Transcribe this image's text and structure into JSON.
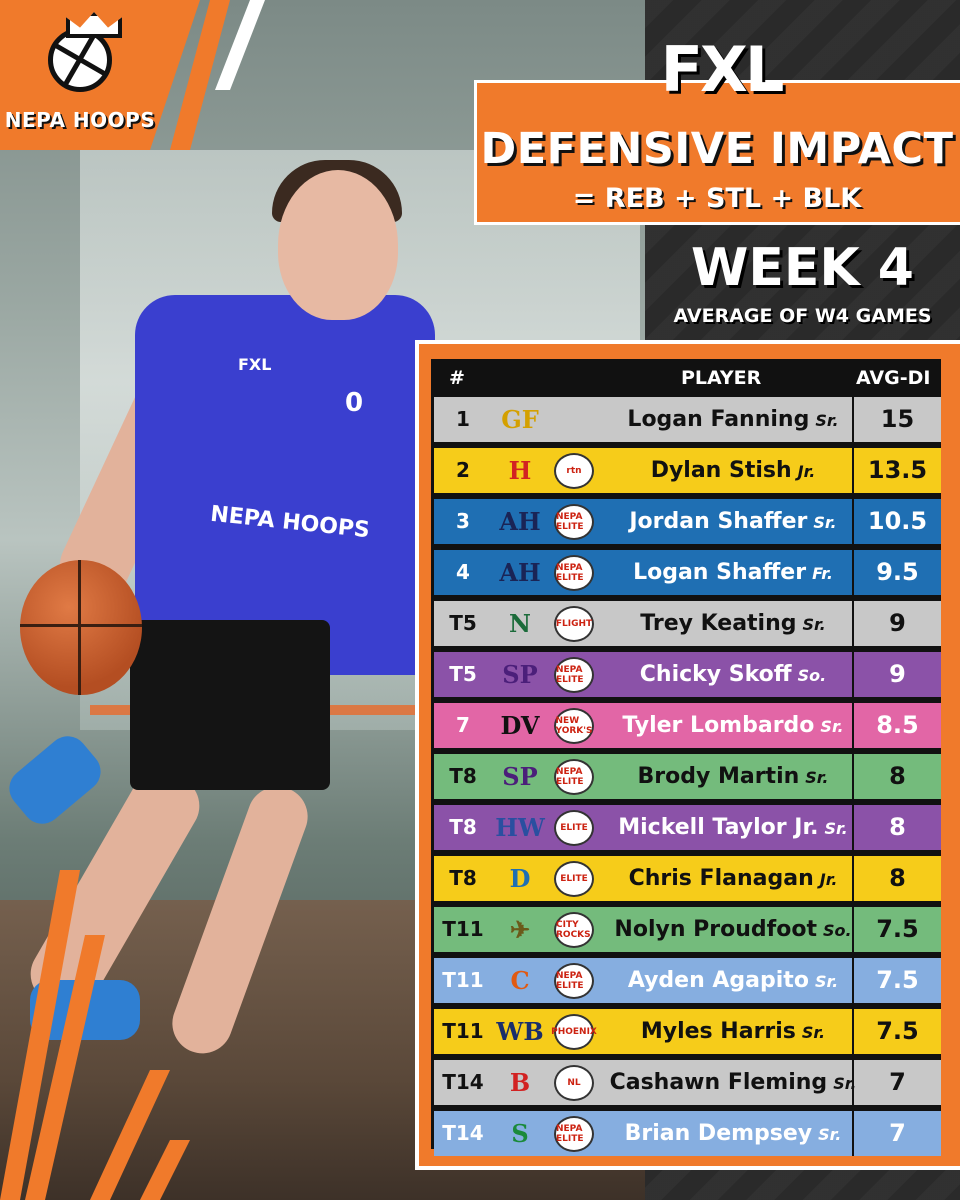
{
  "brand": {
    "logo_text": "NEPA HOOPS",
    "fxl": "FXL"
  },
  "header": {
    "title": "DEFENSIVE IMPACT",
    "subtitle": "= REB + STL + BLK",
    "week": "WEEK 4",
    "week_sub": "AVERAGE OF W4 GAMES"
  },
  "photo": {
    "jersey_text": "NEPA HOOPS",
    "jersey_brand": "FXL",
    "jersey_number": "0"
  },
  "table": {
    "headers": {
      "rank": "#",
      "player": "PLAYER",
      "avg": "AVG-DI"
    },
    "rows": [
      {
        "rank": "1",
        "name": "Logan Fanning",
        "cls": "Sr.",
        "avg": "15",
        "bg": "#c8c8c8",
        "fg": "#111111",
        "logo1": "GF",
        "logo1_color": "#d4a000",
        "logo2": ""
      },
      {
        "rank": "2",
        "name": "Dylan Stish",
        "cls": "Jr.",
        "avg": "13.5",
        "bg": "#f6cc1a",
        "fg": "#111111",
        "logo1": "H",
        "logo1_color": "#d22222",
        "logo2": "rtn"
      },
      {
        "rank": "3",
        "name": "Jordan Shaffer",
        "cls": "Sr.",
        "avg": "10.5",
        "bg": "#1f6fb3",
        "fg": "#ffffff",
        "logo1": "AH",
        "logo1_color": "#1a2456",
        "logo2": "NEPA ELITE"
      },
      {
        "rank": "4",
        "name": "Logan Shaffer",
        "cls": "Fr.",
        "avg": "9.5",
        "bg": "#1f6fb3",
        "fg": "#ffffff",
        "logo1": "AH",
        "logo1_color": "#1a2456",
        "logo2": "NEPA ELITE"
      },
      {
        "rank": "T5",
        "name": "Trey Keating",
        "cls": "Sr.",
        "avg": "9",
        "bg": "#c8c8c8",
        "fg": "#111111",
        "logo1": "N",
        "logo1_color": "#1b6b3a",
        "logo2": "FLIGHT"
      },
      {
        "rank": "T5",
        "name": "Chicky Skoff",
        "cls": "So.",
        "avg": "9",
        "bg": "#8b52a8",
        "fg": "#ffffff",
        "logo1": "SP",
        "logo1_color": "#4b1f7a",
        "logo2": "NEPA ELITE"
      },
      {
        "rank": "7",
        "name": "Tyler Lombardo",
        "cls": "Sr.",
        "avg": "8.5",
        "bg": "#e266a6",
        "fg": "#ffffff",
        "logo1": "DV",
        "logo1_color": "#111111",
        "logo2": "NEW YORK'S"
      },
      {
        "rank": "T8",
        "name": "Brody Martin",
        "cls": "Sr.",
        "avg": "8",
        "bg": "#74bb7c",
        "fg": "#111111",
        "logo1": "SP",
        "logo1_color": "#4b1f7a",
        "logo2": "NEPA ELITE"
      },
      {
        "rank": "T8",
        "name": "Mickell Taylor Jr.",
        "cls": "Sr.",
        "avg": "8",
        "bg": "#8b52a8",
        "fg": "#ffffff",
        "logo1": "HW",
        "logo1_color": "#2a4fa0",
        "logo2": "ELITE"
      },
      {
        "rank": "T8",
        "name": "Chris Flanagan",
        "cls": "Jr.",
        "avg": "8",
        "bg": "#f6cc1a",
        "fg": "#111111",
        "logo1": "D",
        "logo1_color": "#1f6fb3",
        "logo2": "ELITE"
      },
      {
        "rank": "T11",
        "name": "Nolyn Proudfoot",
        "cls": "So.",
        "avg": "7.5",
        "bg": "#74bb7c",
        "fg": "#111111",
        "logo1": "✈",
        "logo1_color": "#6b5a1a",
        "logo2": "CITY ROCKS"
      },
      {
        "rank": "T11",
        "name": "Ayden Agapito",
        "cls": "Sr.",
        "avg": "7.5",
        "bg": "#86aee0",
        "fg": "#ffffff",
        "logo1": "C",
        "logo1_color": "#e05a12",
        "logo2": "NEPA ELITE"
      },
      {
        "rank": "T11",
        "name": "Myles Harris",
        "cls": "Sr.",
        "avg": "7.5",
        "bg": "#f6cc1a",
        "fg": "#111111",
        "logo1": "WB",
        "logo1_color": "#1a2e6b",
        "logo2": "PHOENIX"
      },
      {
        "rank": "T14",
        "name": "Cashawn Fleming",
        "cls": "Sr.",
        "avg": "7",
        "bg": "#c8c8c8",
        "fg": "#111111",
        "logo1": "B",
        "logo1_color": "#d22222",
        "logo2": "NL"
      },
      {
        "rank": "T14",
        "name": "Brian Dempsey",
        "cls": "Sr.",
        "avg": "7",
        "bg": "#86aee0",
        "fg": "#ffffff",
        "logo1": "S",
        "logo1_color": "#1b8a3a",
        "logo2": "NEPA ELITE"
      }
    ]
  }
}
